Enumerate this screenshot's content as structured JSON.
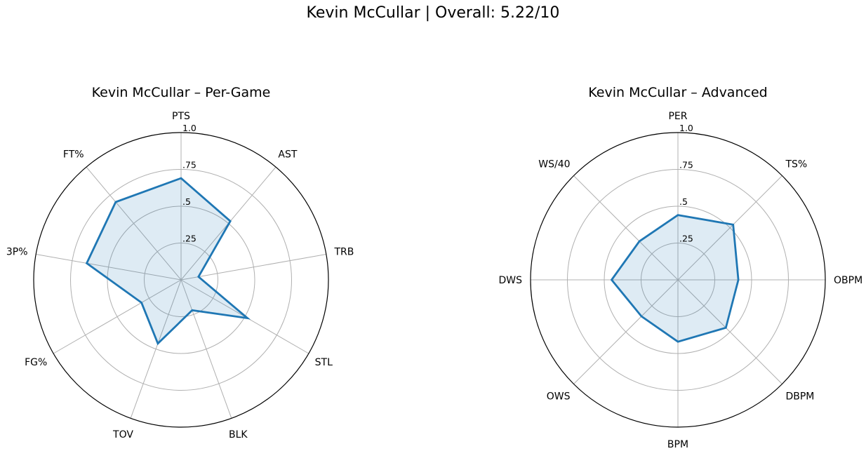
{
  "figure": {
    "suptitle": "Kevin McCullar | Overall: 5.22/10"
  },
  "chart_data": [
    {
      "type": "radar",
      "title": "Kevin McCullar – Per-Game",
      "axes": [
        "PTS",
        "AST",
        "TRB",
        "STL",
        "BLK",
        "TOV",
        "FG%",
        "3P%",
        "FT%"
      ],
      "values": [
        0.69,
        0.52,
        0.12,
        0.52,
        0.22,
        0.46,
        0.31,
        0.65,
        0.69
      ],
      "rlim": [
        0,
        1
      ],
      "rticks": [
        0.25,
        0.5,
        0.75,
        1.0
      ],
      "rtick_labels": [
        ".25",
        ".5",
        ".75",
        "1.0"
      ],
      "grid": true,
      "line_color": "#1f77b4",
      "fill_color": "#1f77b4"
    },
    {
      "type": "radar",
      "title": "Kevin McCullar – Advanced",
      "axes": [
        "PER",
        "TS%",
        "OBPM",
        "DBPM",
        "BPM",
        "OWS",
        "DWS",
        "WS/40"
      ],
      "values": [
        0.44,
        0.53,
        0.41,
        0.46,
        0.42,
        0.35,
        0.45,
        0.37
      ],
      "rlim": [
        0,
        1
      ],
      "rticks": [
        0.25,
        0.5,
        0.75,
        1.0
      ],
      "rtick_labels": [
        ".25",
        ".5",
        ".75",
        "1.0"
      ],
      "grid": true,
      "line_color": "#1f77b4",
      "fill_color": "#1f77b4"
    }
  ]
}
